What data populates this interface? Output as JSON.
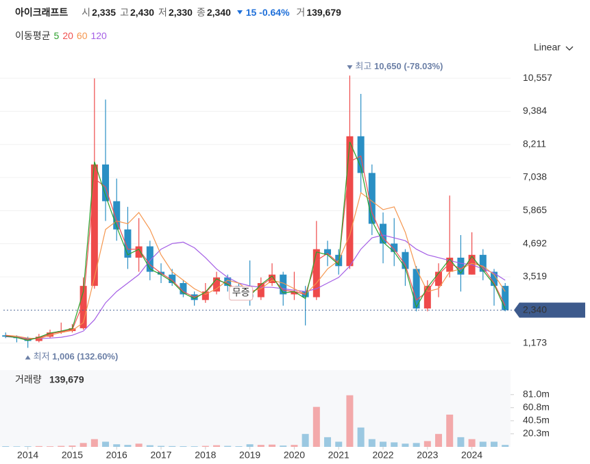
{
  "header": {
    "name": "아이크래프트",
    "quotes": [
      {
        "label": "시",
        "value": "2,335"
      },
      {
        "label": "고",
        "value": "2,430"
      },
      {
        "label": "저",
        "value": "2,330"
      },
      {
        "label": "종",
        "value": "2,340"
      }
    ],
    "change": "15",
    "change_pct": "-0.64%",
    "volume_label": "거",
    "volume": "139,679"
  },
  "chart_data": {
    "type": "candlestick",
    "ma_label": "이동평균",
    "scale_mode": "Linear",
    "x": [
      2013.5,
      2013.75,
      2014,
      2014.25,
      2014.5,
      2014.75,
      2015,
      2015.25,
      2015.5,
      2015.75,
      2016,
      2016.25,
      2016.5,
      2016.75,
      2017,
      2017.25,
      2017.5,
      2017.75,
      2018,
      2018.25,
      2018.5,
      2018.75,
      2019,
      2019.25,
      2019.5,
      2019.75,
      2020,
      2020.25,
      2020.5,
      2020.75,
      2021,
      2021.25,
      2021.5,
      2021.75,
      2022,
      2022.25,
      2022.5,
      2022.75,
      2023,
      2023.25,
      2023.5,
      2023.75,
      2024,
      2024.25,
      2024.5,
      2024.75
    ],
    "open": [
      1450,
      1400,
      1350,
      1250,
      1400,
      1550,
      1600,
      1700,
      3200,
      7500,
      6200,
      5200,
      4200,
      4600,
      3700,
      3600,
      3300,
      2900,
      2700,
      3000,
      3500,
      3200,
      2900,
      2800,
      3300,
      3600,
      2900,
      3000,
      2800,
      4500,
      4300,
      3900,
      8500,
      7200,
      5400,
      4700,
      4400,
      3800,
      2400,
      3200,
      3700,
      4200,
      3600,
      4300,
      3700,
      3200
    ],
    "high": [
      1550,
      1450,
      1400,
      1500,
      1650,
      1900,
      1850,
      3500,
      10550,
      9800,
      7000,
      6000,
      5600,
      4800,
      4000,
      3800,
      3400,
      3000,
      3300,
      3700,
      3600,
      3300,
      4100,
      3500,
      4000,
      3700,
      3700,
      3200,
      5500,
      4800,
      4500,
      10650,
      10000,
      7500,
      5800,
      5600,
      4500,
      3900,
      3400,
      4000,
      6400,
      5000,
      5100,
      4500,
      3800,
      3300
    ],
    "low": [
      1350,
      1200,
      1006,
      1200,
      1350,
      1500,
      1550,
      1650,
      3100,
      5500,
      4800,
      3800,
      3700,
      3400,
      3300,
      3200,
      2800,
      2500,
      2600,
      2900,
      3000,
      2800,
      2500,
      2700,
      3200,
      2500,
      2700,
      1800,
      2700,
      3900,
      3600,
      3800,
      6500,
      5000,
      4000,
      3900,
      3200,
      2300,
      2300,
      2800,
      3500,
      3000,
      3600,
      3400,
      2500,
      2300
    ],
    "close": [
      1400,
      1350,
      1250,
      1400,
      1550,
      1600,
      1700,
      3200,
      7500,
      6200,
      5200,
      4200,
      4600,
      3700,
      3600,
      3300,
      2900,
      2700,
      3000,
      3500,
      3200,
      2900,
      2800,
      3300,
      3600,
      2900,
      3000,
      2800,
      4500,
      4300,
      3900,
      8500,
      7200,
      5400,
      4700,
      4400,
      3800,
      2400,
      3200,
      3700,
      4200,
      3600,
      4300,
      3700,
      3200,
      2340
    ],
    "up_color": "#ee4a4a",
    "down_color": "#2a8fc4",
    "series": [
      {
        "name": "5",
        "color": "#2ca02c",
        "values": [
          1420,
          1370,
          1270,
          1380,
          1530,
          1600,
          1690,
          3000,
          7600,
          6400,
          5300,
          4300,
          4500,
          3800,
          3600,
          3350,
          2950,
          2750,
          2980,
          3450,
          3250,
          2950,
          2850,
          3250,
          3550,
          2950,
          3000,
          2750,
          4400,
          4300,
          3950,
          8300,
          7400,
          5500,
          4750,
          4400,
          3850,
          2450,
          3150,
          3650,
          4150,
          3650,
          4250,
          3750,
          3250,
          2380
        ]
      },
      {
        "name": "20",
        "color": "#f0504f",
        "values": [
          1450,
          1380,
          1300,
          1350,
          1500,
          1580,
          1650,
          2600,
          7000,
          6700,
          5500,
          4500,
          4500,
          3950,
          3650,
          3400,
          3000,
          2800,
          2950,
          3400,
          3300,
          3000,
          2900,
          3200,
          3500,
          3050,
          3000,
          2900,
          4100,
          4350,
          4000,
          7600,
          7800,
          5800,
          4900,
          4500,
          3950,
          2700,
          3000,
          3600,
          4000,
          3800,
          4100,
          3850,
          3300,
          2500
        ]
      },
      {
        "name": "60",
        "color": "#f5964e",
        "values": [
          1450,
          1420,
          1350,
          1330,
          1450,
          1550,
          1620,
          1900,
          3500,
          5200,
          5500,
          5400,
          5800,
          5200,
          4300,
          3700,
          3400,
          3100,
          2900,
          3100,
          3400,
          3300,
          3000,
          3100,
          3400,
          3300,
          3100,
          2900,
          3300,
          3800,
          4100,
          5000,
          6500,
          6200,
          5900,
          6000,
          5100,
          3800,
          3000,
          3100,
          3700,
          3800,
          4000,
          3900,
          3600,
          3000
        ]
      },
      {
        "name": "120",
        "color": "#a45ee5",
        "values": [
          1400,
          1380,
          1350,
          1330,
          1350,
          1380,
          1450,
          1600,
          2000,
          2600,
          3000,
          3300,
          3600,
          4100,
          4500,
          4700,
          4750,
          4550,
          4200,
          3800,
          3500,
          3300,
          3200,
          3150,
          3150,
          3100,
          3050,
          3000,
          3100,
          3300,
          3500,
          3900,
          4500,
          4900,
          5000,
          4900,
          4800,
          4500,
          4300,
          4200,
          4100,
          4000,
          3950,
          3800,
          3650,
          3400
        ]
      }
    ],
    "xlim": [
      2013.45,
      2024.87
    ],
    "xticks": [
      2014,
      2015,
      2016,
      2017,
      2018,
      2019,
      2020,
      2021,
      2022,
      2023,
      2024
    ],
    "ylim": [
      460,
      11020
    ],
    "yticks": [
      {
        "value": 1173,
        "label": "1,173"
      },
      {
        "value": 3519,
        "label": "3,519"
      },
      {
        "value": 4692,
        "label": "4,692"
      },
      {
        "value": 5865,
        "label": "5,865"
      },
      {
        "value": 7038,
        "label": "7,038"
      },
      {
        "value": 8211,
        "label": "8,211"
      },
      {
        "value": 9384,
        "label": "9,384"
      },
      {
        "value": 10557,
        "label": "10,557"
      }
    ],
    "grid": true,
    "high_marker": {
      "x": 2021.25,
      "value": 10650,
      "label": "최고",
      "value_label": "10,650",
      "pct": "(-78.03%)"
    },
    "low_marker": {
      "x": 2014,
      "value": 1006,
      "label": "최저",
      "value_label": "1,006",
      "pct": "(132.60%)"
    },
    "last_price": {
      "value": 2340,
      "label": "2,340"
    },
    "events": [
      {
        "x": 2018.8,
        "label": "무증"
      }
    ],
    "volume": {
      "title": "거래량",
      "value_label": "139,679",
      "values": [
        1000000,
        800000,
        900000,
        1200000,
        900000,
        1500000,
        2000000,
        6000000,
        12000000,
        8000000,
        4000000,
        3000000,
        5000000,
        2500000,
        1500000,
        1200000,
        1000000,
        900000,
        1500000,
        2500000,
        1500000,
        1000000,
        4000000,
        3000000,
        3500000,
        2000000,
        3000000,
        20000000,
        62000000,
        15000000,
        8000000,
        80000000,
        30000000,
        12000000,
        8000000,
        7000000,
        5000000,
        6000000,
        9000000,
        20000000,
        50000000,
        15000000,
        12000000,
        8000000,
        8000000,
        3000000
      ],
      "ylim": [
        0,
        119000000
      ],
      "yticks": [
        {
          "value": 20300000,
          "label": "20.3m"
        },
        {
          "value": 40500000,
          "label": "40.5m"
        },
        {
          "value": 60800000,
          "label": "60.8m"
        },
        {
          "value": 81000000,
          "label": "81.0m"
        }
      ]
    }
  }
}
